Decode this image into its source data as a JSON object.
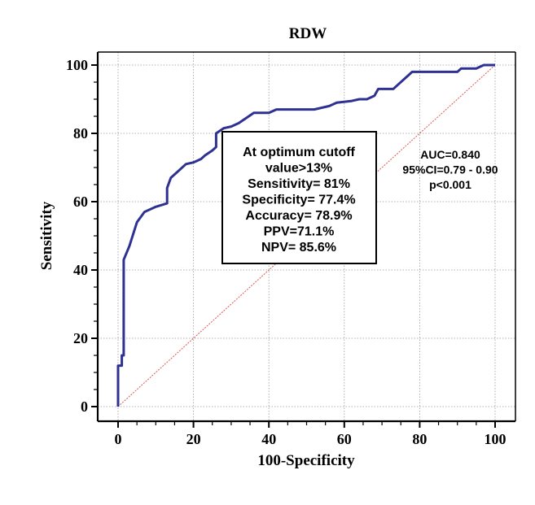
{
  "chart_data": {
    "type": "line",
    "title": "RDW",
    "xlabel": "100-Specificity",
    "ylabel": "Sensitivity",
    "xlim": [
      0,
      100
    ],
    "ylim": [
      0,
      100
    ],
    "xticks": [
      0,
      20,
      40,
      60,
      80,
      100
    ],
    "yticks": [
      0,
      20,
      40,
      60,
      80,
      100
    ],
    "grid": true,
    "series": [
      {
        "name": "RDW ROC curve",
        "color": "#2e3192",
        "x": [
          0,
          0,
          1,
          1,
          1.5,
          1.5,
          3,
          5,
          7,
          10,
          13,
          13,
          14,
          16,
          18,
          20,
          22,
          23,
          25,
          26,
          26,
          28,
          30,
          32,
          34,
          36,
          40,
          42,
          45,
          48,
          52,
          56,
          58,
          62,
          64,
          66,
          68,
          69,
          71,
          73,
          74,
          76,
          77,
          78,
          80,
          84,
          87,
          90,
          91,
          93,
          95,
          97,
          99,
          100
        ],
        "y": [
          0,
          12,
          12,
          15,
          15,
          43,
          47,
          54,
          57,
          58.5,
          59.5,
          64,
          67,
          69,
          71,
          71.5,
          72.5,
          73.5,
          75,
          76,
          80,
          81.5,
          82,
          83,
          84.5,
          86,
          86,
          87,
          87,
          87,
          87,
          88,
          89,
          89.5,
          90,
          90,
          91,
          93,
          93,
          93,
          94,
          96,
          97,
          98,
          98,
          98,
          98,
          98,
          99,
          99,
          99,
          100,
          100,
          100
        ]
      },
      {
        "name": "Reference line",
        "color": "#e05555",
        "x": [
          0,
          100
        ],
        "y": [
          0,
          100
        ]
      }
    ],
    "annotations": {
      "box": [
        "At optimum cutoff",
        "value>13%",
        "Sensitivity= 81%",
        "Specificity= 77.4%",
        "Accuracy= 78.9%",
        "PPV=71.1%",
        "NPV= 85.6%"
      ],
      "stats": [
        "AUC=0.840",
        "95%CI=0.79 - 0.90",
        "p<0.001"
      ]
    }
  }
}
